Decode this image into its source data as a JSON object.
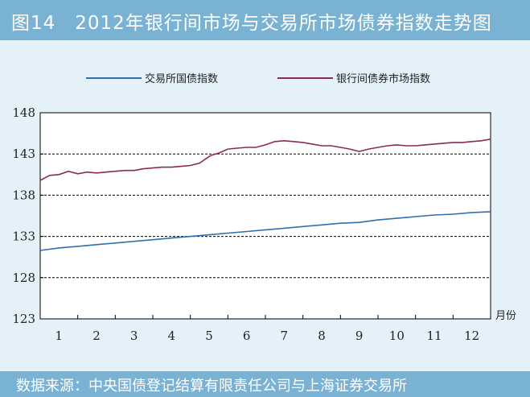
{
  "title": "图14　2012年银行间市场与交易所市场债券指数走势图",
  "footer": "数据来源：中央国债登记结算有限责任公司与上海证券交易所",
  "colors": {
    "header_bg": "#7ab2d4",
    "page_bg": "#e4f1f9",
    "exchange_series": "#2e6fb0",
    "interbank_series": "#8b2a5a"
  },
  "chart_data": {
    "type": "line",
    "x_unit": "月份",
    "x_ticks": [
      "1",
      "2",
      "3",
      "4",
      "5",
      "6",
      "7",
      "8",
      "9",
      "10",
      "11",
      "12"
    ],
    "y_ticks": [
      "148",
      "143",
      "138",
      "133",
      "128",
      "123"
    ],
    "ylim": [
      123,
      148
    ],
    "xlim": [
      0.5,
      12.5
    ],
    "grid": "dashed horizontal at 143, 138, 133, 128",
    "legend_position": "top",
    "series": [
      {
        "name": "交易所国债指数",
        "x": [
          0.5,
          1.0,
          1.5,
          2.0,
          2.5,
          3.0,
          3.5,
          4.0,
          4.5,
          5.0,
          5.5,
          6.0,
          6.5,
          7.0,
          7.5,
          8.0,
          8.5,
          9.0,
          9.5,
          10.0,
          10.5,
          11.0,
          11.5,
          12.0,
          12.5
        ],
        "values": [
          131.3,
          131.6,
          131.8,
          132.0,
          132.2,
          132.4,
          132.6,
          132.8,
          133.0,
          133.2,
          133.4,
          133.6,
          133.8,
          134.0,
          134.2,
          134.4,
          134.6,
          134.7,
          135.0,
          135.2,
          135.4,
          135.6,
          135.7,
          135.9,
          136.0
        ]
      },
      {
        "name": "银行间债券市场指数",
        "x": [
          0.5,
          0.75,
          1.0,
          1.25,
          1.5,
          1.75,
          2.0,
          2.25,
          2.5,
          2.75,
          3.0,
          3.25,
          3.5,
          3.75,
          4.0,
          4.25,
          4.5,
          4.75,
          5.0,
          5.1,
          5.25,
          5.5,
          5.75,
          6.0,
          6.25,
          6.5,
          6.75,
          7.0,
          7.25,
          7.5,
          7.75,
          8.0,
          8.25,
          8.5,
          8.75,
          9.0,
          9.25,
          9.5,
          9.75,
          10.0,
          10.25,
          10.5,
          10.75,
          11.0,
          11.25,
          11.5,
          11.75,
          12.0,
          12.25,
          12.5
        ],
        "values": [
          139.8,
          140.4,
          140.5,
          140.9,
          140.6,
          140.8,
          140.7,
          140.8,
          140.9,
          141.0,
          141.0,
          141.2,
          141.3,
          141.4,
          141.4,
          141.5,
          141.6,
          141.9,
          142.7,
          142.9,
          143.1,
          143.6,
          143.7,
          143.8,
          143.8,
          144.1,
          144.5,
          144.6,
          144.5,
          144.4,
          144.2,
          144.0,
          144.0,
          143.8,
          143.6,
          143.3,
          143.6,
          143.8,
          144.0,
          144.1,
          144.0,
          144.0,
          144.1,
          144.2,
          144.3,
          144.4,
          144.4,
          144.5,
          144.6,
          144.8
        ]
      }
    ]
  }
}
